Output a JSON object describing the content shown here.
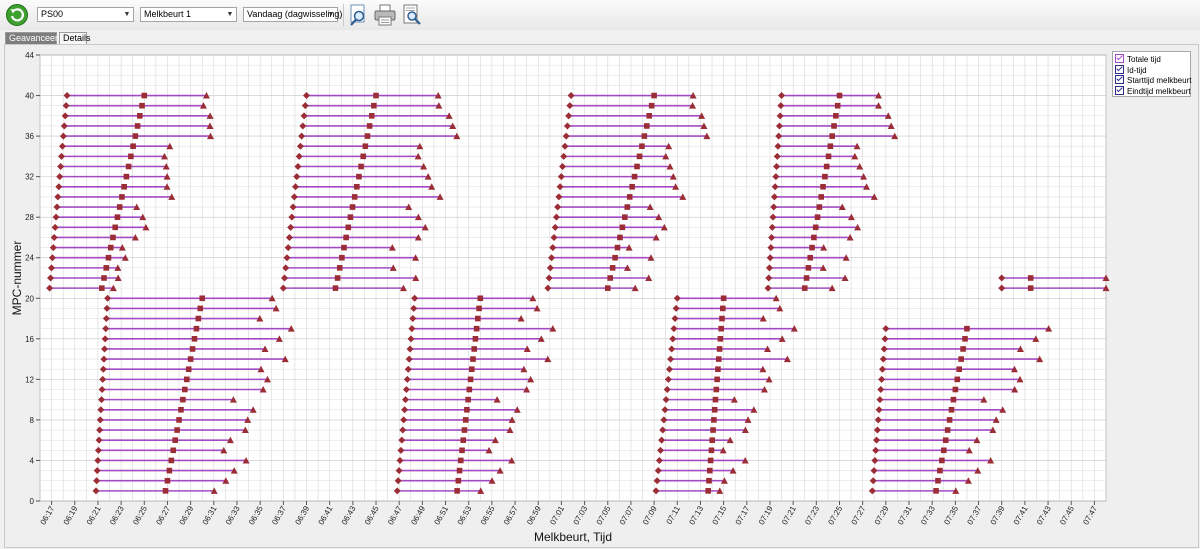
{
  "toolbar": {
    "filters": [
      {
        "name": "location-select",
        "value": "PS00"
      },
      {
        "name": "milking-select",
        "value": "Melkbeurt 1"
      },
      {
        "name": "period-select",
        "value": "Vandaag (dagwisseling)"
      }
    ]
  },
  "tabs": [
    {
      "label": "Geavanceerd",
      "active": true
    },
    {
      "label": "Details",
      "active": false
    }
  ],
  "legend": [
    {
      "label": "Totale tijd",
      "checked": true,
      "color": "#a34bc4"
    },
    {
      "label": "Id-tijd",
      "checked": true,
      "color": "#2d2d8a"
    },
    {
      "label": "Starttijd melkbeurt",
      "checked": true,
      "color": "#2d2d8a"
    },
    {
      "label": "Eindtijd melkbeurt",
      "checked": true,
      "color": "#2d2d8a"
    }
  ],
  "colors": {
    "bar": "#a34bc4",
    "marker": "#9a2d36",
    "grid": "#d6d6d6"
  },
  "chart_data": {
    "type": "range-timeline",
    "xlabel": "Melkbeurt, Tijd",
    "ylabel": "MPC-nummer",
    "ylim": [
      0,
      44
    ],
    "y_ticks": [
      0,
      4,
      8,
      12,
      16,
      20,
      24,
      28,
      32,
      36,
      40,
      44
    ],
    "xlim": [
      "06:16",
      "07:48"
    ],
    "x_ticks": [
      "06:17",
      "06:19",
      "06:21",
      "06:23",
      "06:25",
      "06:27",
      "06:29",
      "06:31",
      "06:33",
      "06:35",
      "06:37",
      "06:39",
      "06:41",
      "06:43",
      "06:45",
      "06:47",
      "06:49",
      "06:51",
      "06:53",
      "06:55",
      "06:57",
      "06:59",
      "07:01",
      "07:03",
      "07:05",
      "07:07",
      "07:09",
      "07:11",
      "07:13",
      "07:15",
      "07:17",
      "07:19",
      "07:21",
      "07:23",
      "07:25",
      "07:27",
      "07:29",
      "07:31",
      "07:33",
      "07:35",
      "07:37",
      "07:39",
      "07:41",
      "07:43",
      "07:45",
      "07:47"
    ],
    "series": [
      {
        "name": "Totale tijd",
        "marker": "bar"
      },
      {
        "name": "Id-tijd",
        "marker": "square"
      },
      {
        "name": "Starttijd melkbeurt",
        "marker": "diamond"
      },
      {
        "name": "Eindtijd melkbeurt",
        "marker": "triangle"
      }
    ],
    "groups": [
      {
        "mpc": [
          21,
          40
        ],
        "start": [
          "06:16:50",
          "06:18:20"
        ],
        "id": [
          "06:21:20",
          "06:25:00"
        ],
        "end": [
          "06:21:00",
          "06:31:00"
        ]
      },
      {
        "mpc": [
          1,
          20
        ],
        "start": [
          "06:20:50",
          "06:21:50"
        ],
        "id": [
          "06:26:50",
          "06:30:00"
        ],
        "end": [
          "06:32:00",
          "06:37:30"
        ]
      },
      {
        "mpc": [
          21,
          40
        ],
        "start": [
          "06:37:00",
          "06:39:00"
        ],
        "id": [
          "06:41:30",
          "06:45:00"
        ],
        "end": [
          "06:47:00",
          "06:51:00"
        ]
      },
      {
        "mpc": [
          1,
          20
        ],
        "start": [
          "06:46:50",
          "06:48:20"
        ],
        "id": [
          "06:52:00",
          "06:54:00"
        ],
        "end": [
          "06:55:00",
          "07:00:00"
        ]
      },
      {
        "mpc": [
          21,
          40
        ],
        "start": [
          "06:59:50",
          "07:01:50"
        ],
        "id": [
          "07:05:00",
          "07:09:00"
        ],
        "end": [
          "07:07:00",
          "07:13:00"
        ]
      },
      {
        "mpc": [
          1,
          20
        ],
        "start": [
          "07:09:10",
          "07:11:00"
        ],
        "id": [
          "07:13:40",
          "07:15:00"
        ],
        "end": [
          "07:15:00",
          "07:21:00"
        ]
      },
      {
        "mpc": [
          21,
          40
        ],
        "start": [
          "07:18:50",
          "07:20:00"
        ],
        "id": [
          "07:22:00",
          "07:25:00"
        ],
        "end": [
          "07:24:00",
          "07:29:00"
        ]
      },
      {
        "mpc": [
          1,
          17
        ],
        "start": [
          "07:27:50",
          "07:29:00"
        ],
        "id": [
          "07:33:20",
          "07:36:00"
        ],
        "end": [
          "07:36:00",
          "07:42:00"
        ]
      },
      {
        "mpc": [
          21,
          22
        ],
        "start": [
          "07:39:00",
          "07:39:00"
        ],
        "id": [
          "07:41:30",
          "07:41:30"
        ],
        "end": [
          "07:48:00",
          "07:48:00"
        ]
      }
    ]
  }
}
